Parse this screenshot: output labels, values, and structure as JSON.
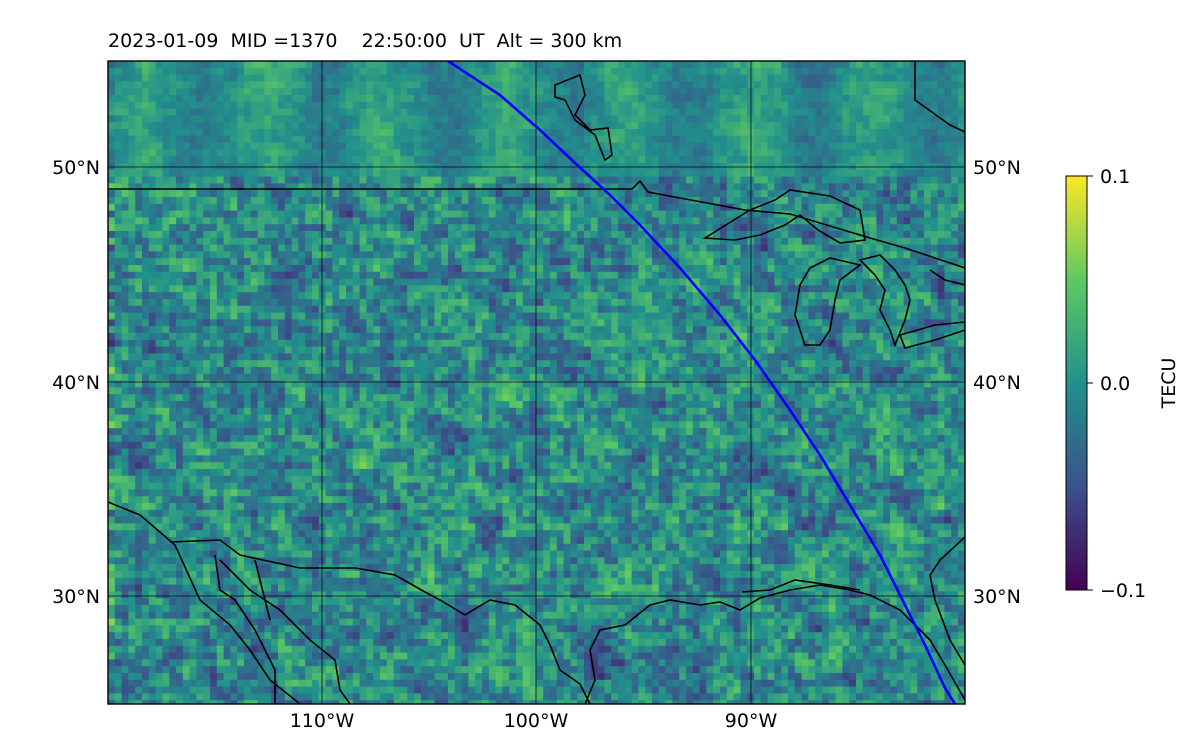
{
  "map": {
    "title": "2023-01-09  MID =1370    22:50:00  UT  Alt = 300 km",
    "lat_labels": [
      "50°N",
      "40°N",
      "30°N"
    ],
    "lon_labels": [
      "110°W",
      "100°W",
      "90°W"
    ],
    "extent": {
      "lon": [
        -120,
        -80
      ],
      "lat": [
        25,
        55
      ]
    },
    "gridlines": {
      "lons": [
        -110,
        -100,
        -90
      ],
      "lats": [
        30,
        40,
        50
      ]
    },
    "colormap": "viridis",
    "track_color": "#0000ff",
    "coastline_color": "#000000",
    "colorbar": {
      "label": "TECU",
      "min": -0.1,
      "max": 0.1,
      "ticks": [
        {
          "value": 0.1,
          "label": "0.1"
        },
        {
          "value": 0.0,
          "label": "0.0"
        },
        {
          "value": -0.1,
          "label": "−0.1"
        }
      ]
    }
  }
}
